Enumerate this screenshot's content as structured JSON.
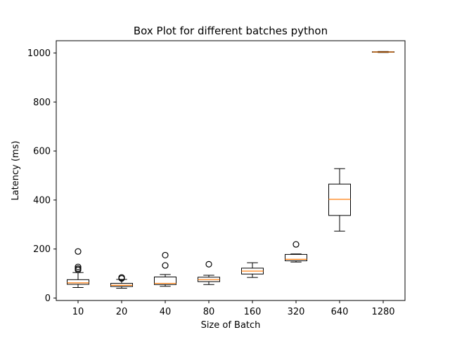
{
  "chart_data": {
    "type": "boxplot",
    "title": "Box Plot for different batches python",
    "xlabel": "Size of Batch",
    "ylabel": "Latency (ms)",
    "ylim": [
      -10,
      1050
    ],
    "yticks": [
      0,
      200,
      400,
      600,
      800,
      1000
    ],
    "grid": false,
    "categories": [
      "10",
      "20",
      "40",
      "80",
      "160",
      "320",
      "640",
      "1280"
    ],
    "boxes": [
      {
        "category": "10",
        "whisker_low": 43,
        "q1": 56,
        "median": 62,
        "q3": 75,
        "whisker_high": 104,
        "fliers": [
          115,
          120,
          127,
          190
        ]
      },
      {
        "category": "20",
        "whisker_low": 40,
        "q1": 47,
        "median": 52,
        "q3": 60,
        "whisker_high": 76,
        "fliers": [
          80,
          84
        ]
      },
      {
        "category": "40",
        "whisker_low": 48,
        "q1": 55,
        "median": 60,
        "q3": 86,
        "whisker_high": 96,
        "fliers": [
          133,
          175
        ]
      },
      {
        "category": "80",
        "whisker_low": 55,
        "q1": 67,
        "median": 75,
        "q3": 85,
        "whisker_high": 93,
        "fliers": [
          138
        ]
      },
      {
        "category": "160",
        "whisker_low": 84,
        "q1": 98,
        "median": 110,
        "q3": 122,
        "whisker_high": 144,
        "fliers": []
      },
      {
        "category": "320",
        "whisker_low": 147,
        "q1": 152,
        "median": 158,
        "q3": 178,
        "whisker_high": 180,
        "fliers": [
          219
        ]
      },
      {
        "category": "640",
        "whisker_low": 273,
        "q1": 337,
        "median": 403,
        "q3": 465,
        "whisker_high": 528,
        "fliers": []
      },
      {
        "category": "1280",
        "whisker_low": 1002,
        "q1": 1003,
        "median": 1004,
        "q3": 1005,
        "whisker_high": 1006,
        "fliers": []
      }
    ],
    "colors": {
      "box": "#000000",
      "median": "#ff7f0e",
      "flier": "#000000"
    }
  }
}
